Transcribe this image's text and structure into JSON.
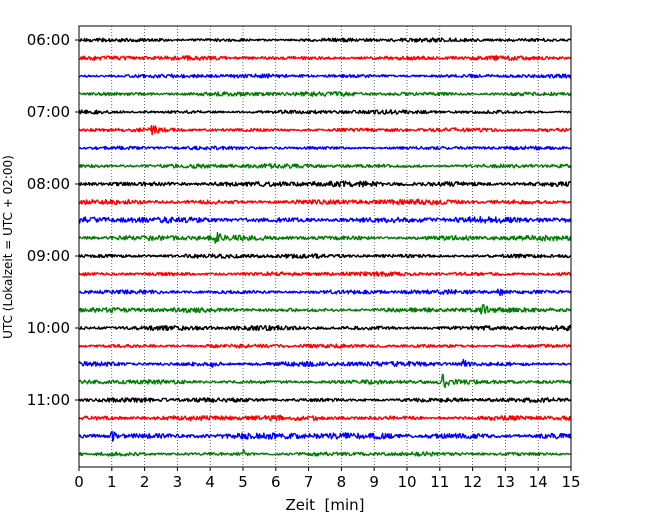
{
  "chart_data": {
    "type": "line",
    "title": "",
    "xlabel": "Zeit  [min]",
    "ylabel": "UTC (Lokalzeit = UTC + 02:00)",
    "xlim": [
      0,
      15
    ],
    "x_ticks": [
      0,
      1,
      2,
      3,
      4,
      5,
      6,
      7,
      8,
      9,
      10,
      11,
      12,
      13,
      14,
      15
    ],
    "x_tick_labels": [
      "0",
      "1",
      "2",
      "3",
      "4",
      "5",
      "6",
      "7",
      "8",
      "9",
      "10",
      "11",
      "12",
      "13",
      "14",
      "15"
    ],
    "y_tick_labels": [
      "06:00",
      "07:00",
      "08:00",
      "09:00",
      "10:00",
      "11:00"
    ],
    "y_tick_trace_index": [
      0,
      4,
      8,
      12,
      16,
      20
    ],
    "grid": "vertical dotted",
    "trace_colors": [
      "#000000",
      "#ff0000",
      "#0000ff",
      "#008000"
    ],
    "traces": [
      {
        "start": "06:00",
        "color": "#000000",
        "amplitude": 0.9,
        "events": []
      },
      {
        "start": "06:15",
        "color": "#ff0000",
        "amplitude": 1.0,
        "events": []
      },
      {
        "start": "06:30",
        "color": "#0000ff",
        "amplitude": 0.9,
        "events": []
      },
      {
        "start": "06:45",
        "color": "#008000",
        "amplitude": 1.0,
        "events": []
      },
      {
        "start": "07:00",
        "color": "#000000",
        "amplitude": 0.9,
        "events": []
      },
      {
        "start": "07:15",
        "color": "#ff0000",
        "amplitude": 0.9,
        "events": [
          {
            "t": 2.25,
            "amp": 2.6
          }
        ]
      },
      {
        "start": "07:30",
        "color": "#0000ff",
        "amplitude": 0.8,
        "events": []
      },
      {
        "start": "07:45",
        "color": "#008000",
        "amplitude": 1.0,
        "events": []
      },
      {
        "start": "08:00",
        "color": "#000000",
        "amplitude": 1.3,
        "events": []
      },
      {
        "start": "08:15",
        "color": "#ff0000",
        "amplitude": 1.2,
        "events": []
      },
      {
        "start": "08:30",
        "color": "#0000ff",
        "amplitude": 1.4,
        "events": []
      },
      {
        "start": "08:45",
        "color": "#008000",
        "amplitude": 1.2,
        "events": [
          {
            "t": 4.2,
            "amp": 2.2
          }
        ]
      },
      {
        "start": "09:00",
        "color": "#000000",
        "amplitude": 1.0,
        "events": []
      },
      {
        "start": "09:15",
        "color": "#ff0000",
        "amplitude": 1.0,
        "events": []
      },
      {
        "start": "09:30",
        "color": "#0000ff",
        "amplitude": 1.0,
        "events": [
          {
            "t": 12.8,
            "amp": 3.2
          }
        ]
      },
      {
        "start": "09:45",
        "color": "#008000",
        "amplitude": 1.1,
        "events": [
          {
            "t": 12.3,
            "amp": 2.6
          }
        ]
      },
      {
        "start": "10:00",
        "color": "#000000",
        "amplitude": 1.1,
        "events": []
      },
      {
        "start": "10:15",
        "color": "#ff0000",
        "amplitude": 0.9,
        "events": []
      },
      {
        "start": "10:30",
        "color": "#0000ff",
        "amplitude": 1.1,
        "events": [
          {
            "t": 4.0,
            "amp": 2.0
          },
          {
            "t": 11.7,
            "amp": 1.8
          }
        ]
      },
      {
        "start": "10:45",
        "color": "#008000",
        "amplitude": 1.0,
        "events": [
          {
            "t": 11.1,
            "amp": 3.0
          }
        ]
      },
      {
        "start": "11:00",
        "color": "#000000",
        "amplitude": 1.0,
        "events": []
      },
      {
        "start": "11:15",
        "color": "#ff0000",
        "amplitude": 1.2,
        "events": []
      },
      {
        "start": "11:30",
        "color": "#0000ff",
        "amplitude": 1.5,
        "events": [
          {
            "t": 1.0,
            "amp": 2.2
          }
        ]
      },
      {
        "start": "11:45",
        "color": "#008000",
        "amplitude": 0.9,
        "events": [
          {
            "t": 5.0,
            "amp": 2.0
          }
        ]
      }
    ]
  }
}
